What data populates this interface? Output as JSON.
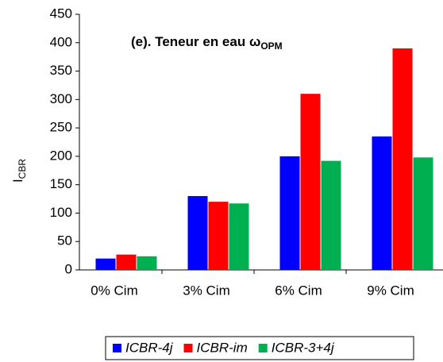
{
  "chart_data": {
    "type": "bar",
    "title": "(e). Teneur en eau ω",
    "title_subscript": "OPM",
    "ylabel": "I",
    "ylabel_subscript": "CBR",
    "categories": [
      "0% Cim",
      "3% Cim",
      "6% Cim",
      "9% Cim"
    ],
    "series": [
      {
        "name": "ICBR-4j",
        "color": "#0000ff",
        "values": [
          20,
          130,
          200,
          235
        ]
      },
      {
        "name": "ICBR-im",
        "color": "#ff0000",
        "values": [
          27,
          120,
          310,
          390
        ]
      },
      {
        "name": "ICBR-3+4j",
        "color": "#00b050",
        "values": [
          24,
          117,
          192,
          198
        ]
      }
    ],
    "ylim": [
      0,
      450
    ],
    "yticks": [
      0,
      50,
      100,
      150,
      200,
      250,
      300,
      350,
      400,
      450
    ],
    "legend": "bottom"
  }
}
